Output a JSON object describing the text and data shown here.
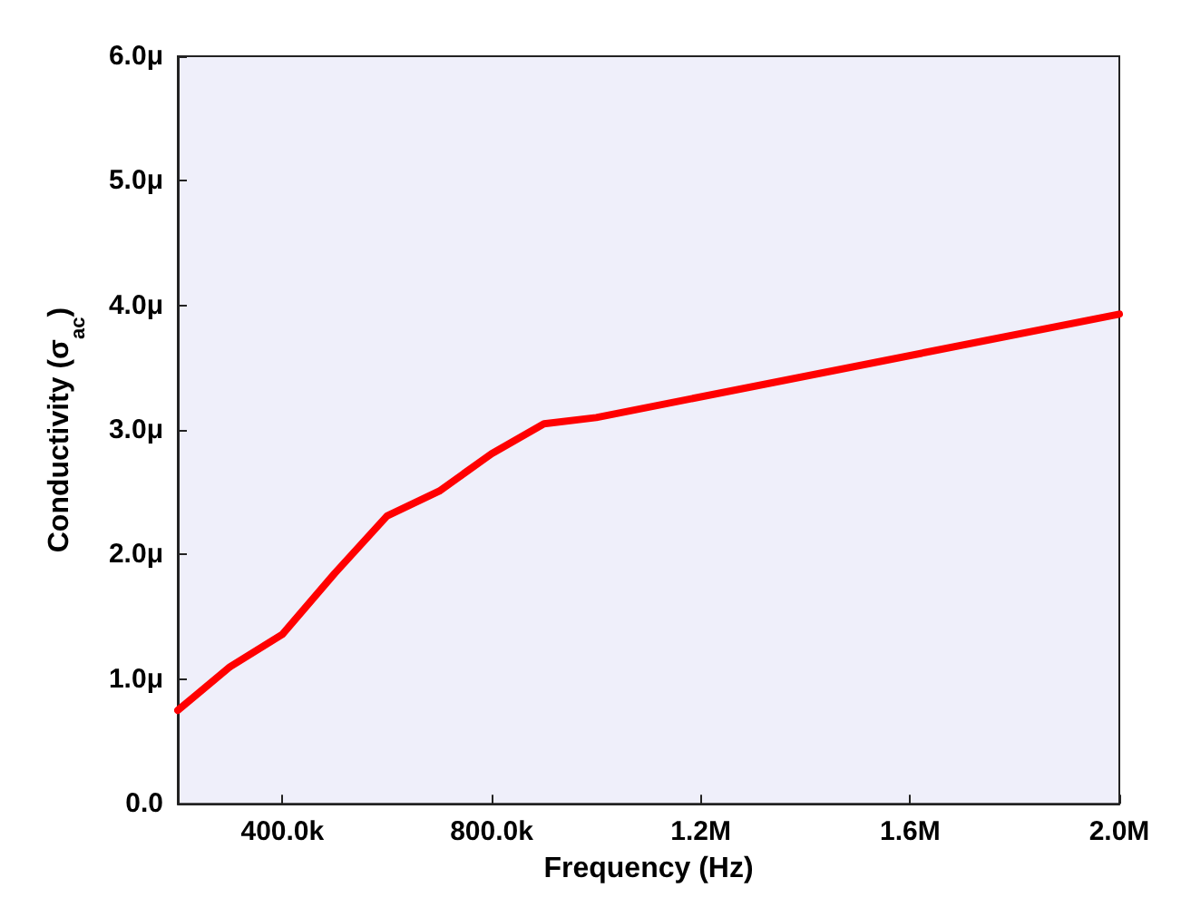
{
  "chart_data": {
    "type": "line",
    "xlabel": "Frequency (Hz)",
    "ylabel": "Conductivity (σ$_{ac}$)",
    "x": [
      200000,
      300000,
      400000,
      500000,
      600000,
      700000,
      800000,
      900000,
      1000000,
      2000000
    ],
    "series": [
      {
        "color": "#ff0000",
        "values": [
          0.75,
          1.1,
          1.36,
          1.85,
          2.31,
          2.51,
          2.81,
          3.05,
          3.1,
          3.93
        ]
      }
    ],
    "xlim": [
      200000,
      2000000
    ],
    "xticks": [
      {
        "value": 400000,
        "label": "400.0k"
      },
      {
        "value": 800000,
        "label": "800.0k"
      },
      {
        "value": 1200000,
        "label": "1.2M"
      },
      {
        "value": 1600000,
        "label": "1.6M"
      },
      {
        "value": 2000000,
        "label": "2.0M"
      }
    ],
    "ylim": [
      0,
      6
    ],
    "yticks": [
      {
        "value": 0,
        "label": "0.0"
      },
      {
        "value": 1,
        "label": "1.0μ"
      },
      {
        "value": 2,
        "label": "2.0μ"
      },
      {
        "value": 3,
        "label": "3.0μ"
      },
      {
        "value": 4,
        "label": "4.0μ"
      },
      {
        "value": 5,
        "label": "5.0μ"
      },
      {
        "value": 6,
        "label": "6.0μ"
      }
    ],
    "grid": false,
    "marker": "none",
    "line_style": "solid"
  }
}
